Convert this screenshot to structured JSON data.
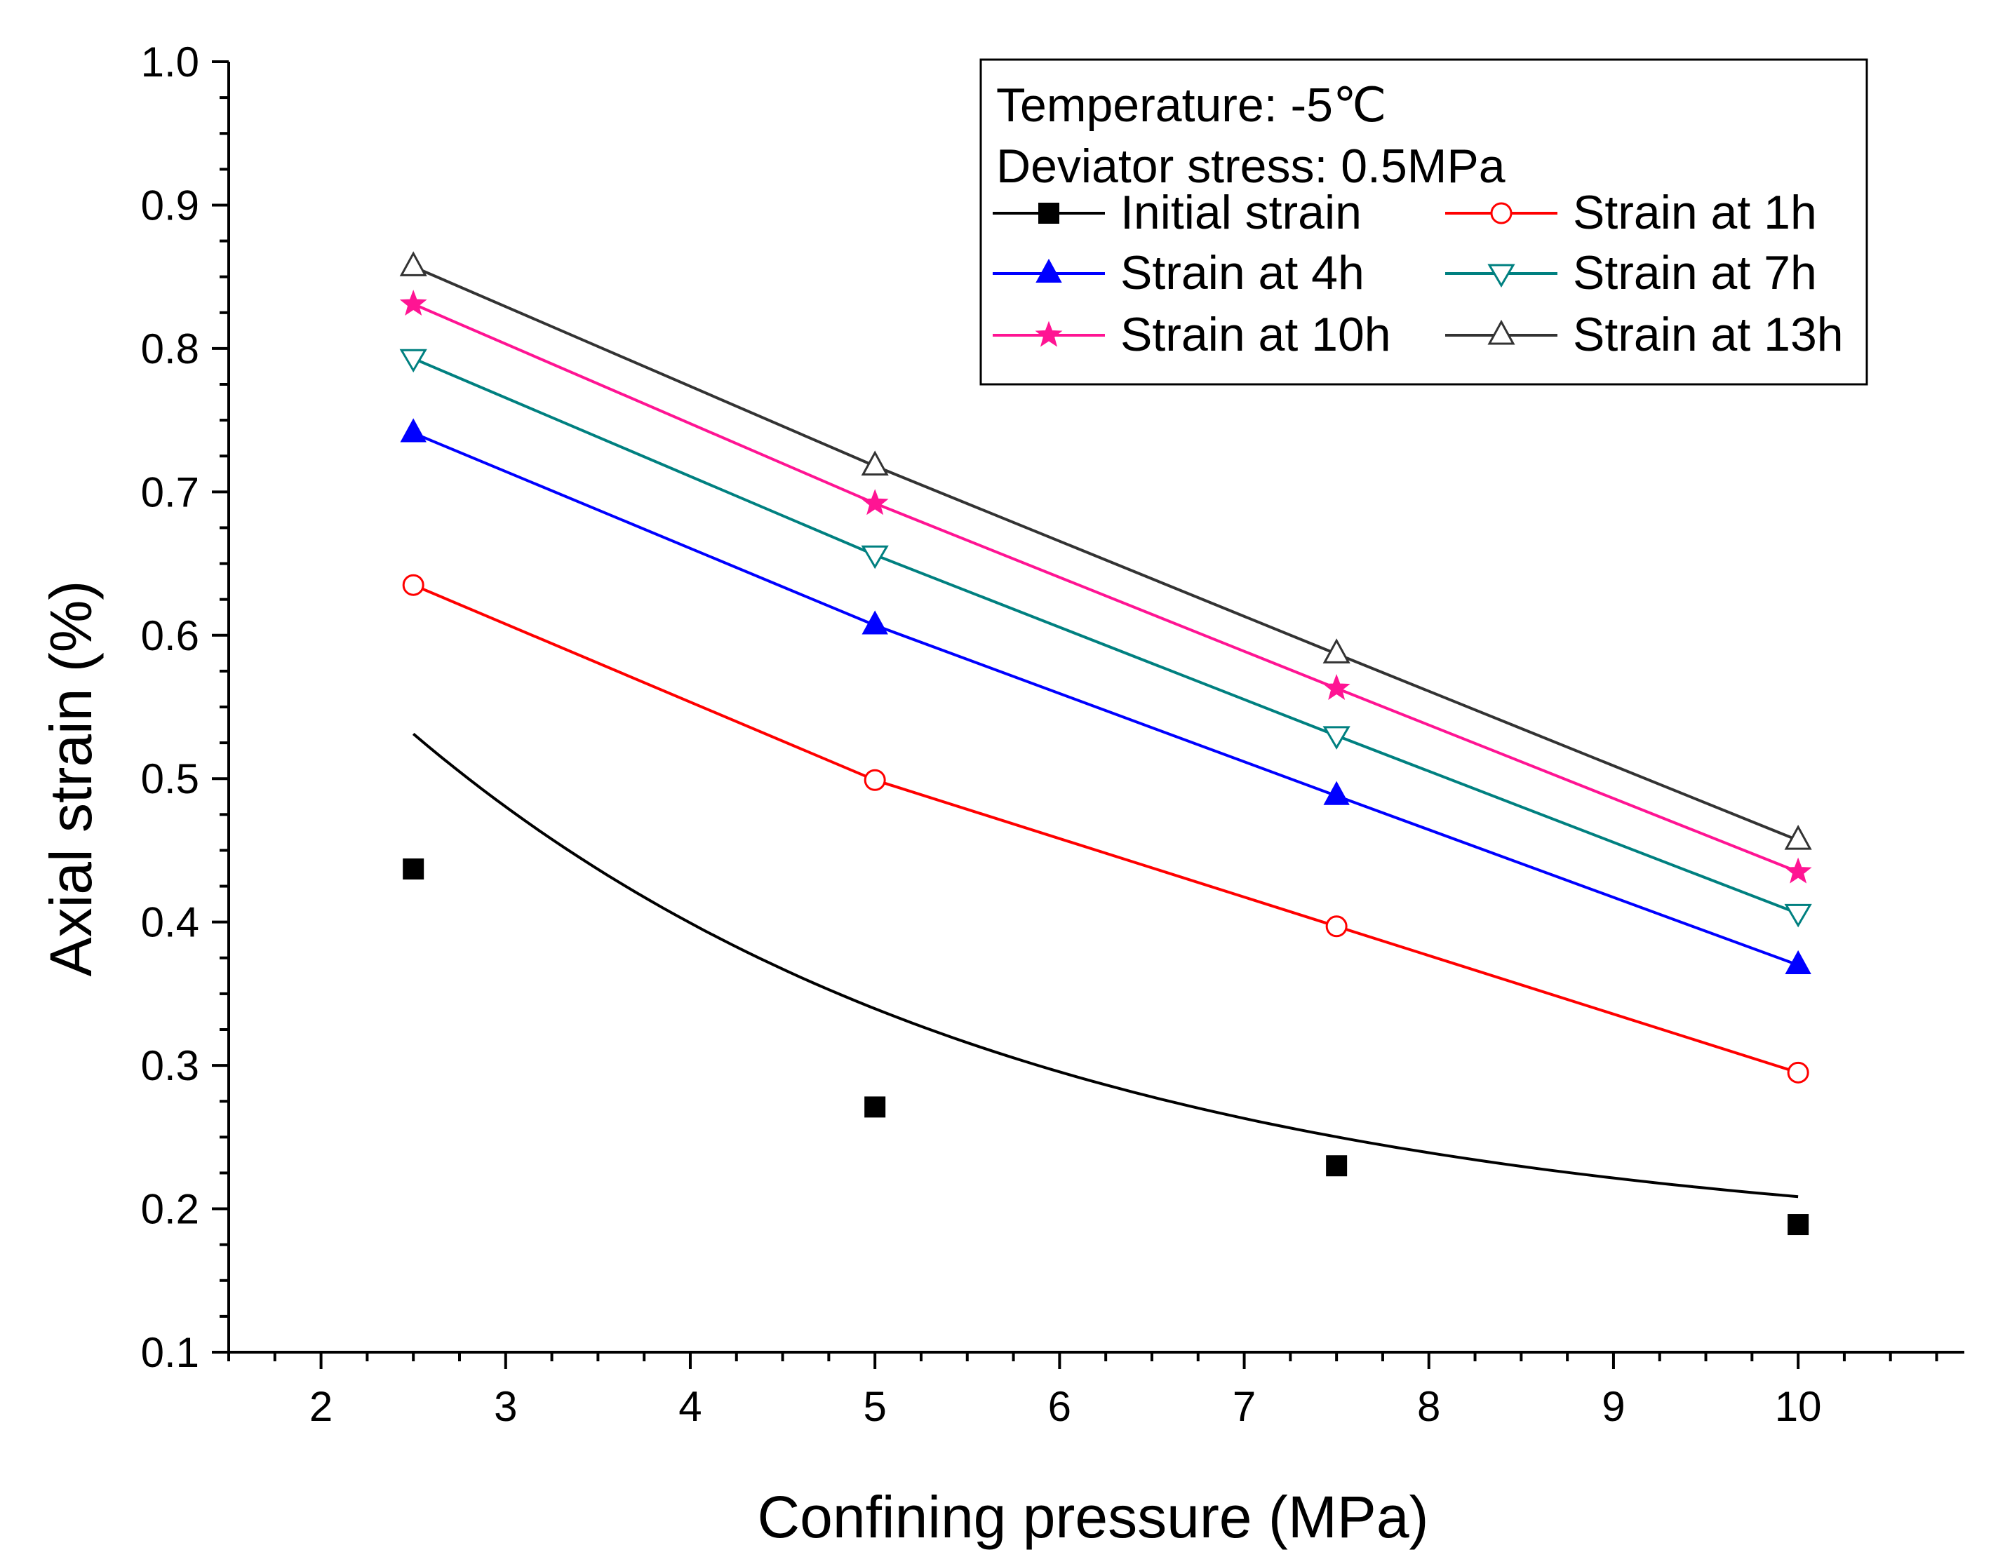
{
  "chart_data": {
    "type": "line",
    "title": "",
    "xlabel": "Confining pressure (MPa)",
    "ylabel": "Axial strain (%)",
    "xlim": [
      1.5,
      10.9
    ],
    "ylim": [
      0.1,
      1.0
    ],
    "x_ticks": [
      2,
      3,
      4,
      5,
      6,
      7,
      8,
      9,
      10
    ],
    "x_tick_labels": [
      "2",
      "3",
      "4",
      "5",
      "6",
      "7",
      "8",
      "9",
      "10"
    ],
    "y_ticks": [
      0.1,
      0.2,
      0.3,
      0.4,
      0.5,
      0.6,
      0.7,
      0.8,
      0.9,
      1.0
    ],
    "y_tick_labels": [
      "0.1",
      "0.2",
      "0.3",
      "0.4",
      "0.5",
      "0.6",
      "0.7",
      "0.8",
      "0.9",
      "1.0"
    ],
    "grid": false,
    "legend_position": "top-right",
    "annotations": [
      "Temperature: -5℃",
      "Deviator stress: 0.5MPa"
    ],
    "x": [
      2.5,
      5,
      7.5,
      10
    ],
    "series": [
      {
        "name": "Initial strain",
        "color": "#000000",
        "marker": "square-filled",
        "values": [
          0.437,
          0.271,
          0.23,
          0.189
        ],
        "fit": "curve"
      },
      {
        "name": "Strain at 1h",
        "color": "#ff0000",
        "marker": "circle-open",
        "values": [
          0.635,
          0.499,
          0.397,
          0.295
        ],
        "fit": "line"
      },
      {
        "name": "Strain at 4h",
        "color": "#0000ff",
        "marker": "triangle-up-filled",
        "values": [
          0.741,
          0.607,
          0.488,
          0.37
        ],
        "fit": "line"
      },
      {
        "name": "Strain at 7h",
        "color": "#008080",
        "marker": "triangle-down-open",
        "values": [
          0.793,
          0.656,
          0.53,
          0.406
        ],
        "fit": "line"
      },
      {
        "name": "Strain at 10h",
        "color": "#ff1493",
        "marker": "star-filled",
        "values": [
          0.831,
          0.692,
          0.563,
          0.435
        ],
        "fit": "line"
      },
      {
        "name": "Strain at 13h",
        "color": "#333333",
        "marker": "triangle-up-open",
        "values": [
          0.857,
          0.718,
          0.587,
          0.457
        ],
        "fit": "line"
      }
    ]
  }
}
